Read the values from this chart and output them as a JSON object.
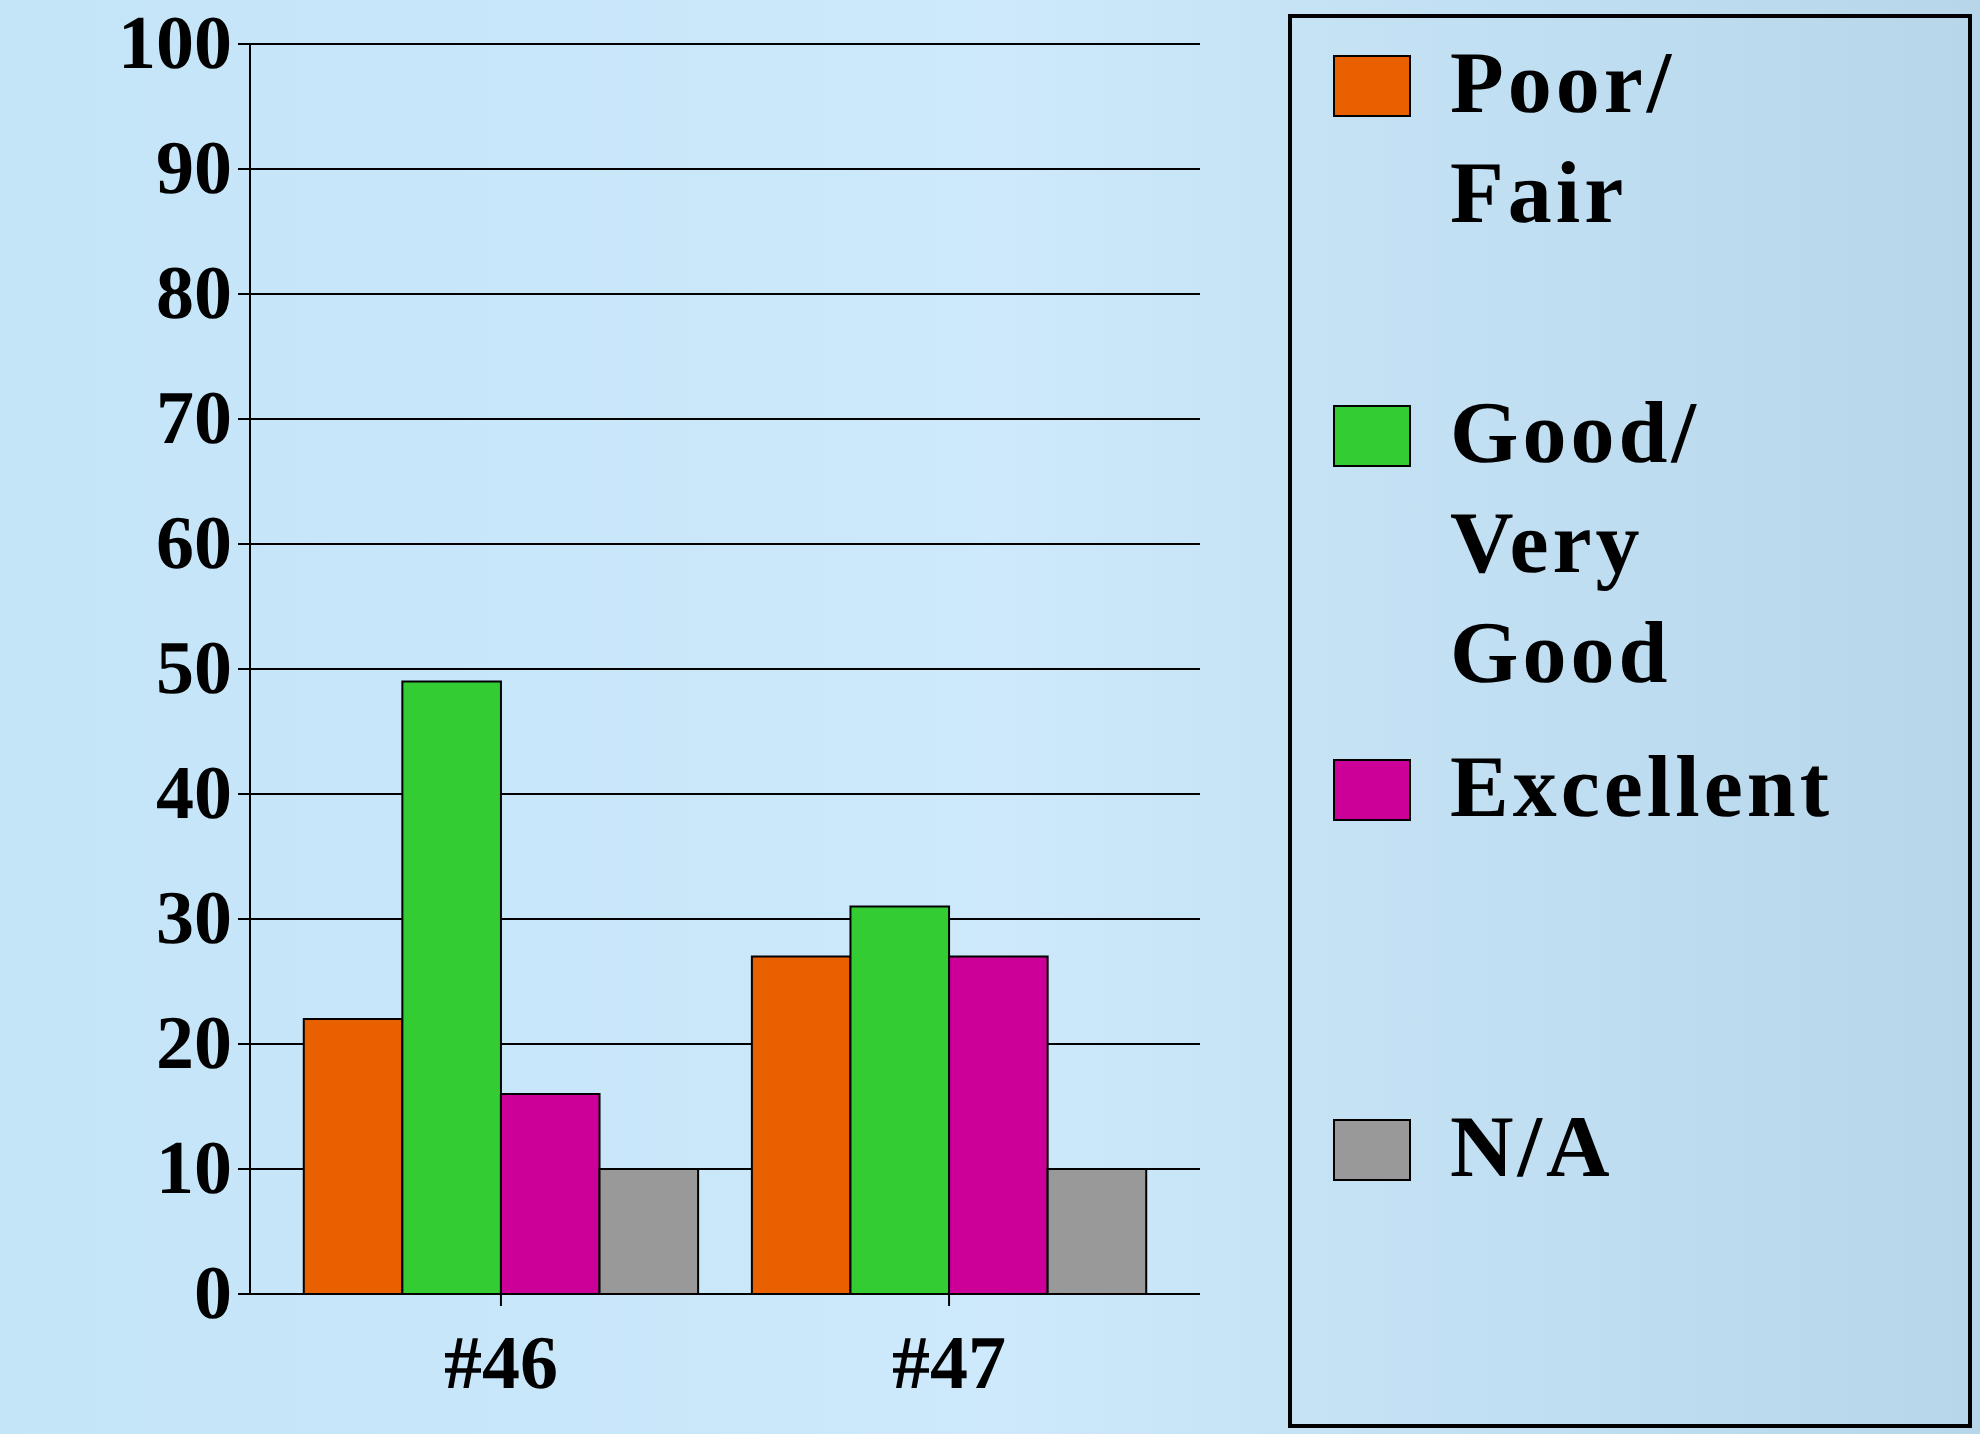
{
  "chart_data": {
    "type": "bar",
    "categories": [
      "#46",
      "#47"
    ],
    "series": [
      {
        "name": "Poor/Fair",
        "color": "#e86000",
        "values": [
          22,
          27
        ]
      },
      {
        "name": "Good/Very Good",
        "color": "#33cc33",
        "values": [
          49,
          31
        ]
      },
      {
        "name": "Excellent",
        "color": "#cc0099",
        "values": [
          16,
          27
        ]
      },
      {
        "name": "N/A",
        "color": "#999999",
        "values": [
          10,
          10
        ]
      }
    ],
    "ylim": [
      0,
      100
    ],
    "yticks": [
      0,
      10,
      20,
      30,
      40,
      50,
      60,
      70,
      80,
      90,
      100
    ],
    "grid": "y",
    "legend": "right"
  }
}
